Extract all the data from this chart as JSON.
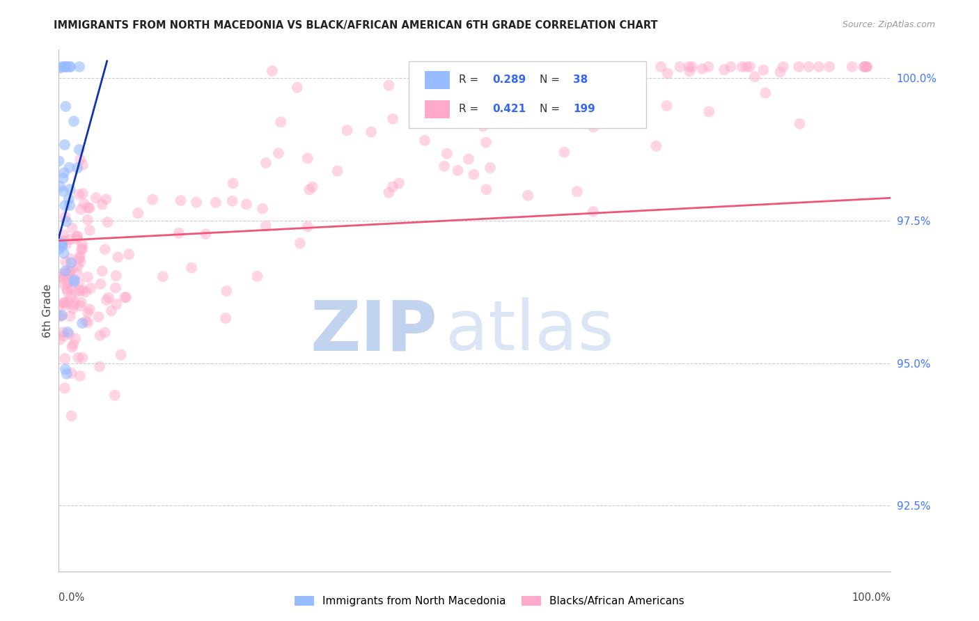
{
  "title": "IMMIGRANTS FROM NORTH MACEDONIA VS BLACK/AFRICAN AMERICAN 6TH GRADE CORRELATION CHART",
  "source": "Source: ZipAtlas.com",
  "ylabel": "6th Grade",
  "legend_label_blue": "Immigrants from North Macedonia",
  "legend_label_pink": "Blacks/African Americans",
  "R_blue": 0.289,
  "N_blue": 38,
  "R_pink": 0.421,
  "N_pink": 199,
  "blue_color": "#99bbff",
  "pink_color": "#ffaacc",
  "blue_line_color": "#1133aa",
  "pink_line_color": "#ee5577",
  "xmin": 0.0,
  "xmax": 1.0,
  "ymin": 0.9135,
  "ymax": 1.005,
  "ytick_values": [
    0.925,
    0.95,
    0.975,
    1.0
  ],
  "ytick_labels": [
    "92.5%",
    "95.0%",
    "97.5%",
    "100.0%"
  ],
  "xtick_left_label": "0.0%",
  "xtick_right_label": "100.0%",
  "blue_line_x0": 0.0,
  "blue_line_y0": 0.972,
  "blue_line_x1": 0.058,
  "blue_line_y1": 1.003,
  "pink_line_x0": 0.0,
  "pink_line_y0": 0.9715,
  "pink_line_x1": 1.0,
  "pink_line_y1": 0.979
}
